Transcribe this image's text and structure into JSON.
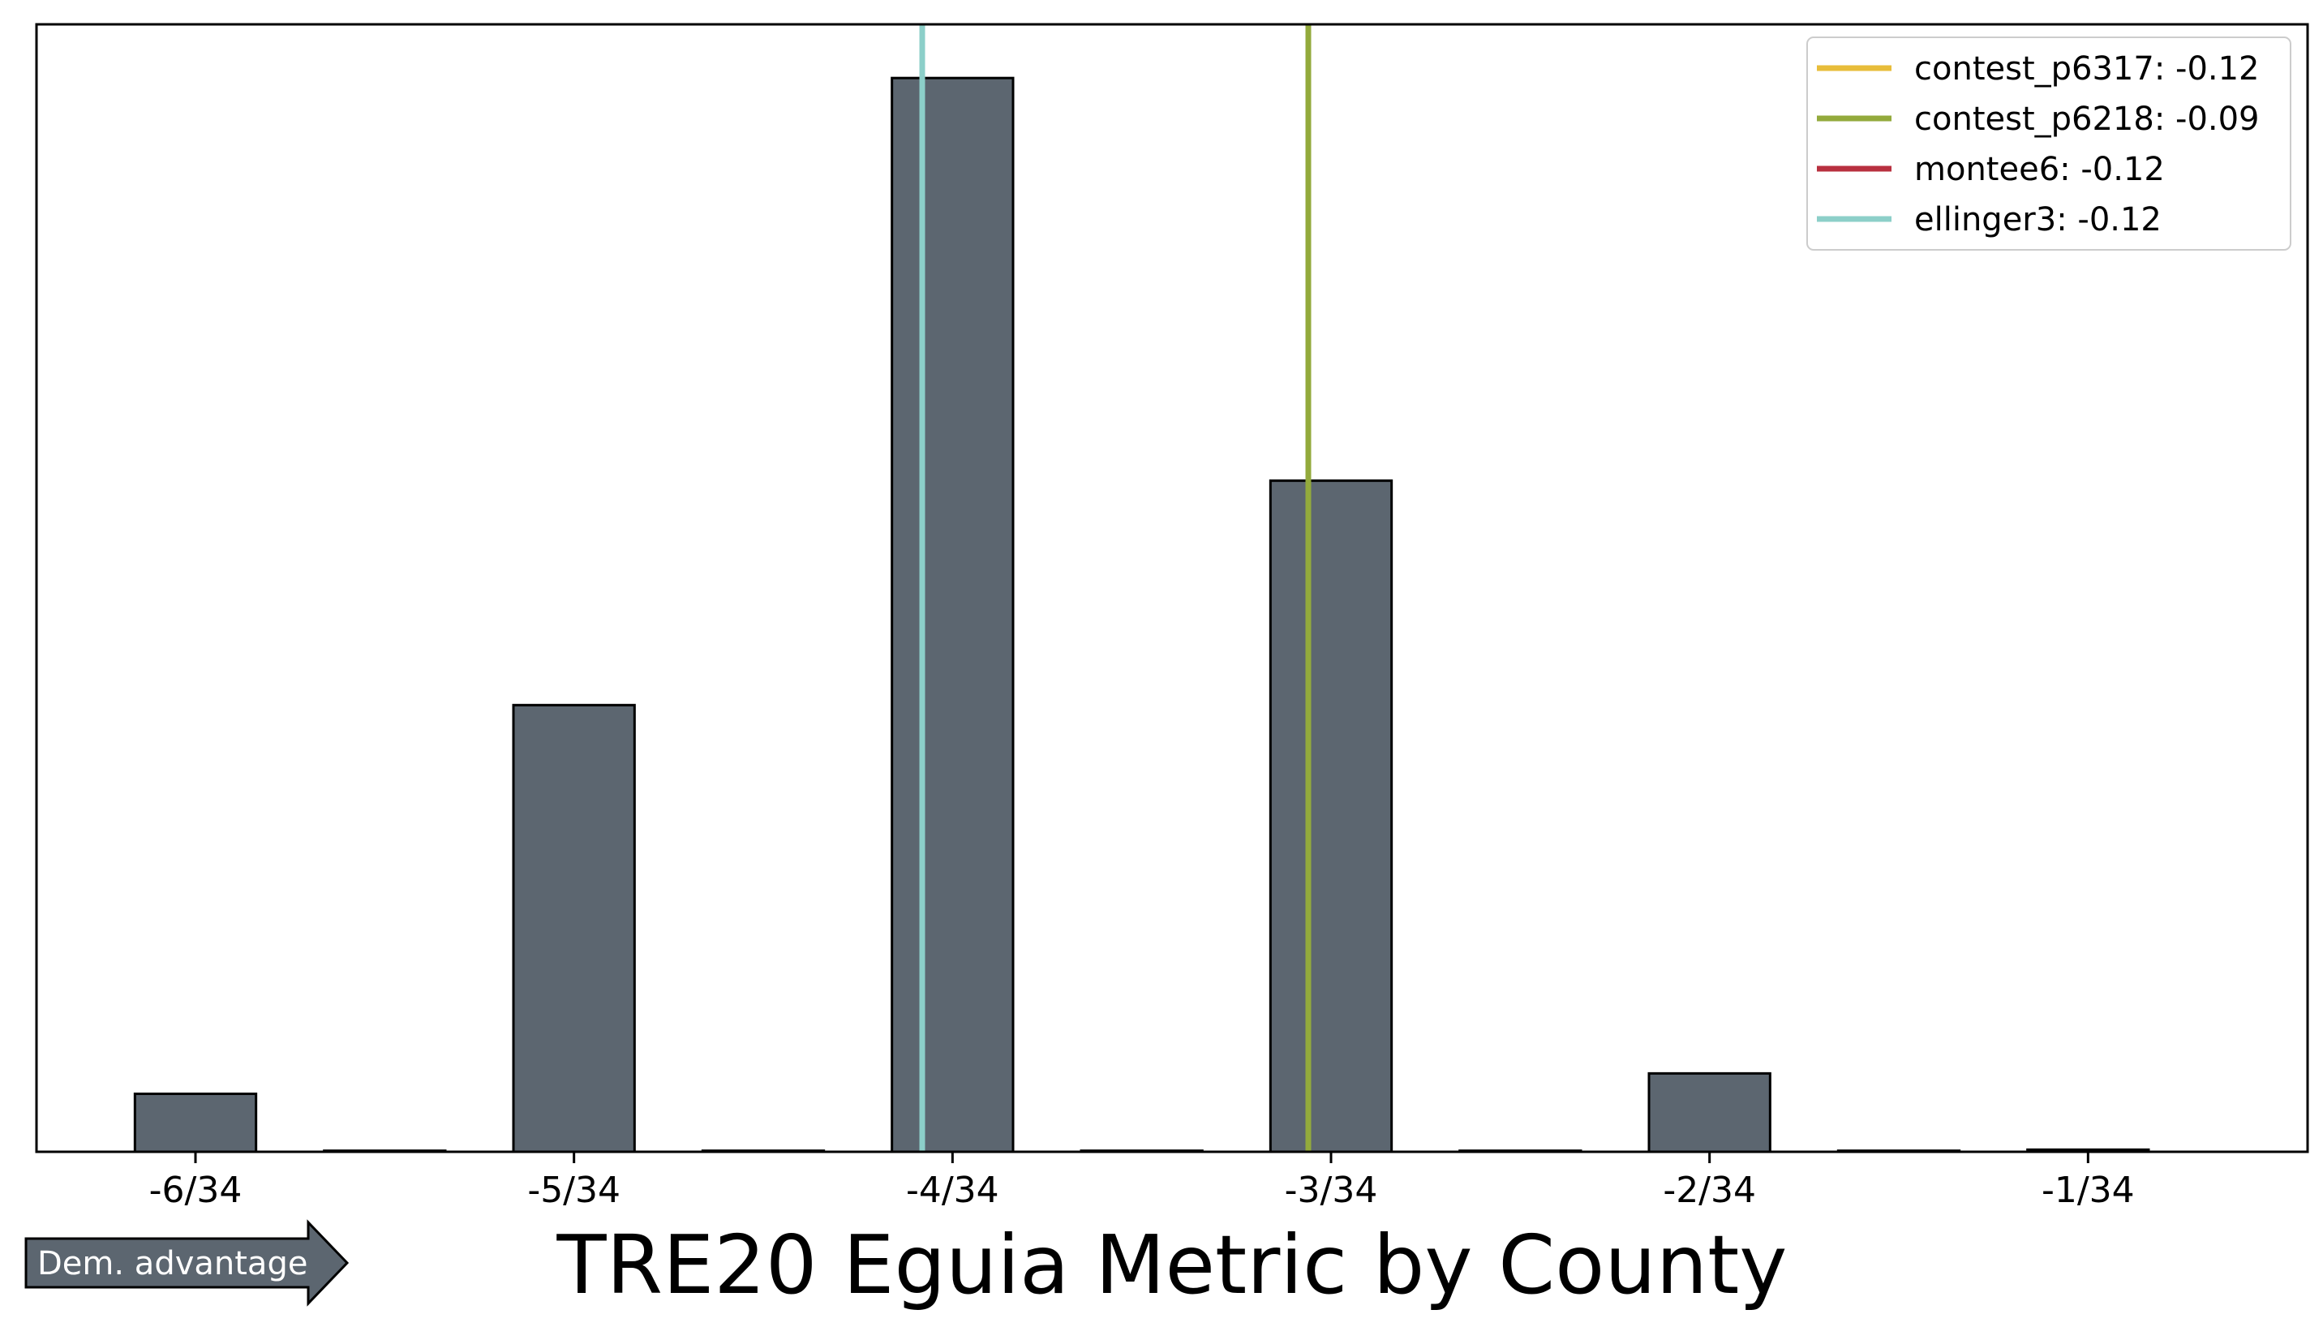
{
  "chart_data": {
    "type": "bar",
    "title": "TRE20 Eguia Metric by County",
    "xlabel": "",
    "ylabel": "",
    "x_ticks": [
      "-6/34",
      "-5/34",
      "-4/34",
      "-3/34",
      "-2/34",
      "-1/34"
    ],
    "x_tick_values": [
      -6,
      -5,
      -4,
      -3,
      -2,
      -1
    ],
    "x_unit_denominator": 34,
    "xlim": [
      -6.42,
      -0.42
    ],
    "ylim": [
      0,
      1.05
    ],
    "grid": false,
    "bars": {
      "x": [
        -6,
        -5.5,
        -5,
        -4.5,
        -4,
        -3.5,
        -3,
        -2.5,
        -2,
        -1.5,
        -1
      ],
      "heights": [
        0.054,
        0.001,
        0.416,
        0.001,
        1.0,
        0.001,
        0.625,
        0.001,
        0.073,
        0.001,
        0.002
      ],
      "width": 0.32,
      "color": "#5c6670",
      "edgecolor": "#000000"
    },
    "reference_lines": [
      {
        "label": "contest_p6317: -0.12",
        "value": -0.12,
        "color": "#e8bd3a"
      },
      {
        "label": "contest_p6218: -0.09",
        "value": -0.09,
        "color": "#93aa3c"
      },
      {
        "label": "montee6: -0.12",
        "value": -0.12,
        "color": "#b8303f"
      },
      {
        "label": "ellinger3: -0.12",
        "value": -0.12,
        "color": "#8ccfc9"
      }
    ],
    "legend_position": "top-right",
    "annotation": {
      "text": "Dem. advantage",
      "color": "#5c6670"
    }
  }
}
